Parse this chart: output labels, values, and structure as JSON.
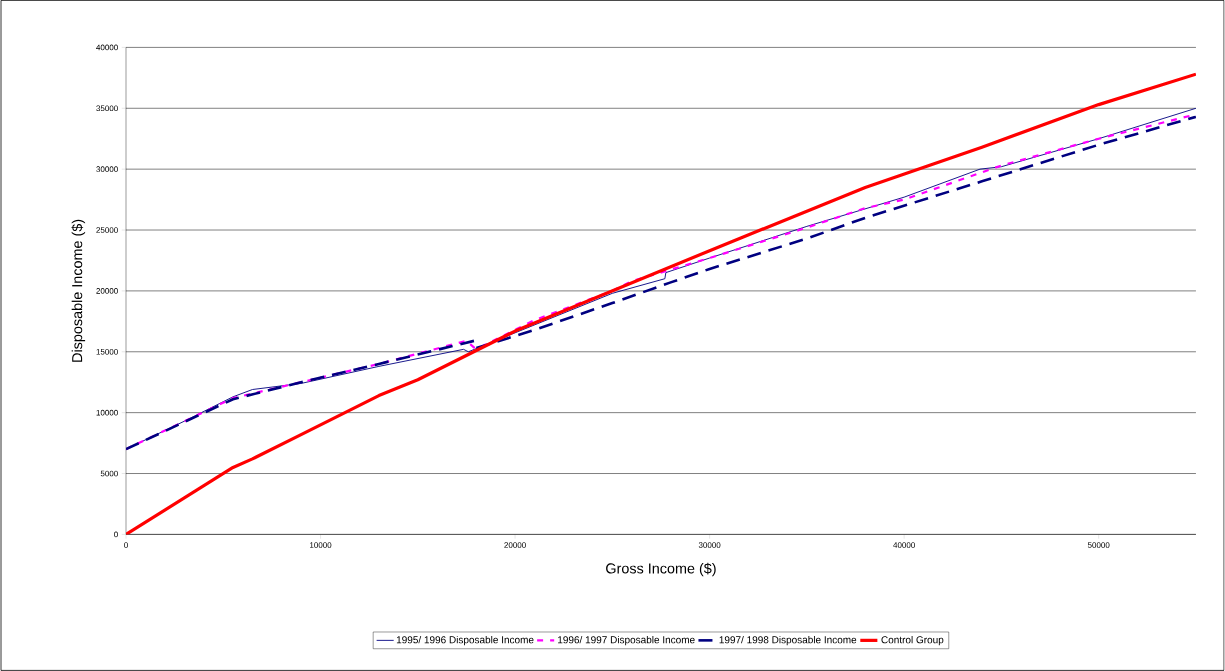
{
  "chart_data": {
    "type": "line",
    "xlabel": "Gross Income ($)",
    "ylabel": "Disposable Income ($)",
    "xlim": [
      0,
      55000
    ],
    "ylim": [
      0,
      40000
    ],
    "xticks": [
      0,
      10000,
      20000,
      30000,
      40000,
      50000
    ],
    "yticks": [
      0,
      5000,
      10000,
      15000,
      20000,
      25000,
      30000,
      35000,
      40000
    ],
    "grid": "y",
    "legend": "bottom",
    "marker": "none",
    "series": [
      {
        "name": "1995/ 1996 Disposable Income",
        "color": "#000080",
        "line_style": "solid",
        "x": [
          0,
          3000,
          5500,
          6500,
          9000,
          13000,
          17350,
          17600,
          20000,
          25000,
          27700,
          27750,
          30000,
          35000,
          40000,
          43900,
          45000,
          50000,
          55000
        ],
        "values": [
          7000,
          9300,
          11300,
          11900,
          12400,
          13800,
          15200,
          15000,
          null,
          19800,
          21000,
          21500,
          22700,
          25300,
          27700,
          30000,
          30200,
          32500,
          35000
        ]
      },
      {
        "name": "1996/ 1997 Disposable Income",
        "color": "#ff00ff",
        "line_style": "dotted",
        "x": [
          0,
          5500,
          9000,
          13000,
          17500,
          18000,
          21000,
          25000,
          26000,
          30000,
          35000,
          38000,
          40000,
          45000,
          50000,
          55000
        ],
        "values": [
          7000,
          11200,
          12500,
          14000,
          15900,
          15200,
          17600,
          20000,
          20800,
          22700,
          25200,
          26800,
          27500,
          30300,
          32500,
          34500
        ]
      },
      {
        "name": "1997/ 1998 Disposable Income",
        "color": "#000080",
        "line_style": "dashed",
        "x": [
          0,
          5500,
          9000,
          13000,
          17900,
          18000,
          21000,
          25000,
          28000,
          30000,
          35000,
          38000,
          40000,
          44000,
          50000,
          55000
        ],
        "values": [
          7000,
          11100,
          12500,
          14000,
          15900,
          15300,
          16800,
          19000,
          20700,
          21800,
          24300,
          26000,
          27000,
          29000,
          32000,
          34300
        ]
      },
      {
        "name": "Control Group",
        "color": "#ff0000",
        "line_style": "solid",
        "x": [
          0,
          5500,
          6500,
          9000,
          13000,
          15000,
          20000,
          25000,
          30000,
          38000,
          44000,
          50000,
          55000
        ],
        "values": [
          0,
          5500,
          6200,
          8200,
          11400,
          12700,
          16700,
          20000,
          23300,
          28500,
          31800,
          35300,
          37800
        ]
      }
    ]
  }
}
